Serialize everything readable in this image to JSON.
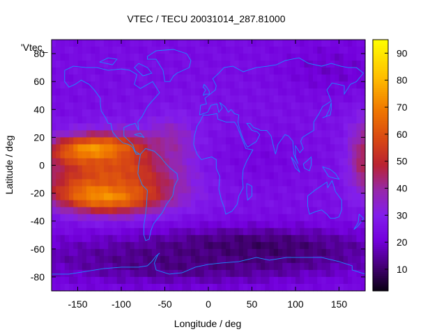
{
  "chart_data": {
    "type": "heatmap",
    "title": "VTEC / TECU 20031014_287.81000",
    "xlabel": "Longitude / deg",
    "ylabel": "Latitude / deg",
    "legend_label": "'Vtec_",
    "xlim": [
      -180,
      180
    ],
    "ylim": [
      -90,
      90
    ],
    "x_ticks": [
      -150,
      -100,
      -50,
      0,
      50,
      100,
      150
    ],
    "y_ticks": [
      -80,
      -60,
      -40,
      -20,
      0,
      20,
      40,
      60,
      80
    ],
    "colorbar": {
      "range": [
        2,
        95
      ],
      "ticks": [
        10,
        20,
        30,
        40,
        50,
        60,
        70,
        80,
        90
      ],
      "palette": "black-purple-red-orange-yellow"
    },
    "grid": false,
    "z_features": [
      {
        "lon": -125,
        "lat": 10,
        "dlon": 50,
        "dlat": 10,
        "value": 92
      },
      {
        "lon": -115,
        "lat": -20,
        "dlon": 55,
        "dlat": 12,
        "value": 90
      },
      {
        "lon": -100,
        "lat": -5,
        "dlon": 80,
        "dlat": 22,
        "value": 62
      },
      {
        "lon": -40,
        "lat": 12,
        "dlon": 25,
        "dlat": 18,
        "value": 48
      },
      {
        "lon": 180,
        "lat": 5,
        "dlon": 20,
        "dlat": 25,
        "value": 55
      },
      {
        "lon": 60,
        "lat": 5,
        "dlon": 100,
        "dlat": 35,
        "value": 22
      },
      {
        "lon": 50,
        "lat": -60,
        "dlon": 120,
        "dlat": 15,
        "value": 8
      },
      {
        "lon": -30,
        "lat": -70,
        "dlon": 150,
        "dlat": 15,
        "value": 12
      }
    ]
  }
}
